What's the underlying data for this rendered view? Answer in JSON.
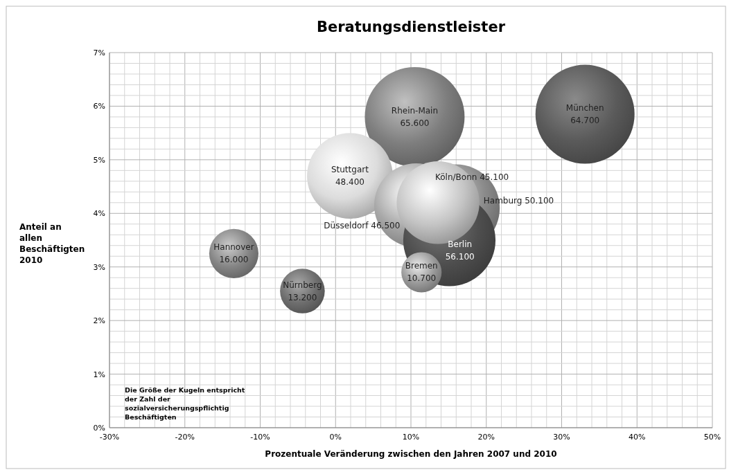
{
  "chart_data": {
    "type": "bubble",
    "title": "Beratungsdienstleister",
    "xlabel": "Prozentuale Veränderung zwischen den Jahren 2007 und 2010",
    "ylabel": "Anteil an allen Beschäftigten 2010",
    "xlim": [
      -30,
      50
    ],
    "ylim": [
      0,
      7
    ],
    "xticks": [
      {
        "value": -30,
        "label": "-30%"
      },
      {
        "value": -28,
        "label": null
      },
      {
        "value": -26,
        "label": null
      },
      {
        "value": -24,
        "label": null
      },
      {
        "value": -22,
        "label": null
      },
      {
        "value": -20,
        "label": "-20%"
      },
      {
        "value": -18,
        "label": null
      },
      {
        "value": -16,
        "label": null
      },
      {
        "value": -14,
        "label": null
      },
      {
        "value": -12,
        "label": null
      },
      {
        "value": -10,
        "label": "-10%"
      },
      {
        "value": -8,
        "label": null
      },
      {
        "value": -6,
        "label": null
      },
      {
        "value": -4,
        "label": null
      },
      {
        "value": -2,
        "label": null
      },
      {
        "value": 0,
        "label": "0%"
      },
      {
        "value": 2,
        "label": null
      },
      {
        "value": 4,
        "label": null
      },
      {
        "value": 6,
        "label": null
      },
      {
        "value": 8,
        "label": null
      },
      {
        "value": 10,
        "label": "10%"
      },
      {
        "value": 12,
        "label": null
      },
      {
        "value": 14,
        "label": null
      },
      {
        "value": 16,
        "label": null
      },
      {
        "value": 18,
        "label": null
      },
      {
        "value": 20,
        "label": "20%"
      },
      {
        "value": 22,
        "label": null
      },
      {
        "value": 24,
        "label": null
      },
      {
        "value": 26,
        "label": null
      },
      {
        "value": 28,
        "label": null
      },
      {
        "value": 30,
        "label": "30%"
      },
      {
        "value": 32,
        "label": null
      },
      {
        "value": 34,
        "label": null
      },
      {
        "value": 36,
        "label": null
      },
      {
        "value": 38,
        "label": null
      },
      {
        "value": 40,
        "label": "40%"
      },
      {
        "value": 42,
        "label": null
      },
      {
        "value": 44,
        "label": null
      },
      {
        "value": 46,
        "label": null
      },
      {
        "value": 48,
        "label": null
      },
      {
        "value": 50,
        "label": "50%"
      }
    ],
    "yticks": [
      {
        "value": 0,
        "label": "0%"
      },
      {
        "value": 0.2,
        "label": null
      },
      {
        "value": 0.4,
        "label": null
      },
      {
        "value": 0.6,
        "label": null
      },
      {
        "value": 0.8,
        "label": null
      },
      {
        "value": 1,
        "label": "1%"
      },
      {
        "value": 1.2,
        "label": null
      },
      {
        "value": 1.4,
        "label": null
      },
      {
        "value": 1.6,
        "label": null
      },
      {
        "value": 1.8,
        "label": null
      },
      {
        "value": 2,
        "label": "2%"
      },
      {
        "value": 2.2,
        "label": null
      },
      {
        "value": 2.4,
        "label": null
      },
      {
        "value": 2.6,
        "label": null
      },
      {
        "value": 2.8,
        "label": null
      },
      {
        "value": 3,
        "label": "3%"
      },
      {
        "value": 3.2,
        "label": null
      },
      {
        "value": 3.4,
        "label": null
      },
      {
        "value": 3.6,
        "label": null
      },
      {
        "value": 3.8,
        "label": null
      },
      {
        "value": 4,
        "label": "4%"
      },
      {
        "value": 4.2,
        "label": null
      },
      {
        "value": 4.4,
        "label": null
      },
      {
        "value": 4.6,
        "label": null
      },
      {
        "value": 4.8,
        "label": null
      },
      {
        "value": 5,
        "label": "5%"
      },
      {
        "value": 5.2,
        "label": null
      },
      {
        "value": 5.4,
        "label": null
      },
      {
        "value": 5.6,
        "label": null
      },
      {
        "value": 5.8,
        "label": null
      },
      {
        "value": 6,
        "label": "6%"
      },
      {
        "value": 6.2,
        "label": null
      },
      {
        "value": 6.4,
        "label": null
      },
      {
        "value": 6.6,
        "label": null
      },
      {
        "value": 6.8,
        "label": null
      },
      {
        "value": 7,
        "label": "7%"
      }
    ],
    "grid": true,
    "series": [
      {
        "x": [
          33.1,
          10.5,
          1.9,
          10.7,
          16,
          15.1,
          13.6,
          11.4,
          -13.5,
          -4.4
        ],
        "values": [
          5.85,
          5.8,
          4.7,
          4.15,
          4.1,
          3.5,
          4.2,
          2.9,
          3.25,
          2.55
        ],
        "sizes": [
          0.986,
          1,
          0.738,
          0.709,
          0.764,
          0.855,
          0.688,
          0.163,
          0.244,
          0.201
        ],
        "colors": [
          "#5a5a5a",
          "#7e7e7e",
          "#dcdcdc",
          "#a8a8a8",
          "#8c8c8c",
          "#4e4e4e",
          "#c4c4c4",
          "#9a9a9a",
          "#858585",
          "#6e6e6e"
        ]
      }
    ],
    "annotations": [
      {
        "text": "München\n64.700",
        "x": 33.1,
        "y": 5.85
      },
      {
        "text": "Rhein-Main\n65.600",
        "x": 10.5,
        "y": 5.8
      },
      {
        "text": "Stuttgart\n48.400",
        "x": 1.9,
        "y": 4.7
      },
      {
        "text": "Köln/Bonn  45.100",
        "x": 18.1,
        "y": 4.67
      },
      "Hamburg  50.100",
      "Düsseldorf  46.500",
      {
        "text": "Berlin\n56.100",
        "x": 16.5,
        "y": 3.3
      },
      {
        "text": "Bremen\n10.700",
        "x": 11.4,
        "y": 2.9
      },
      {
        "text": "Hannover\n16.000",
        "x": -13.5,
        "y": 3.25
      },
      {
        "text": "Nürnberg\n13.200",
        "x": -4.4,
        "y": 2.55
      },
      "Die Größe der Kugeln entspricht der Zahl der sozialversicherungspflichtig Beschäftigten"
    ]
  }
}
